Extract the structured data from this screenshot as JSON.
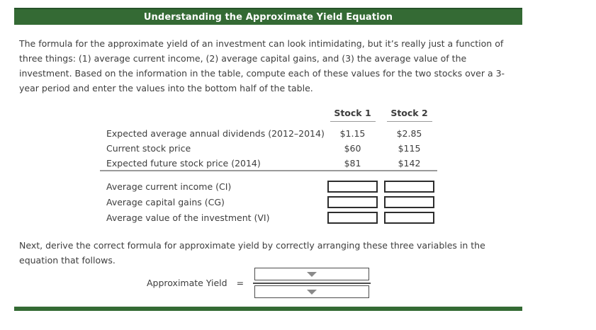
{
  "title_bar": {
    "title": "Understanding the Approximate Yield Equation"
  },
  "intro_paragraph": "The formula for the approximate yield of an investment can look intimidating, but it’s really just a function of three things: (1) average current income, (2) average capital gains, and (3) the average value of the investment. Based on the information in the table, compute each of these values for the two stocks over a 3-year period and enter the values into the bottom half of the table.",
  "table": {
    "column_headers": [
      "Stock 1",
      "Stock 2"
    ],
    "data_rows": [
      {
        "label": "Expected average annual dividends (2012–2014)",
        "stock1": "$1.15",
        "stock2": "$2.85"
      },
      {
        "label": "Current stock price",
        "stock1": "$60",
        "stock2": "$115"
      },
      {
        "label": "Expected future stock price (2014)",
        "stock1": "$81",
        "stock2": "$142"
      }
    ],
    "input_rows": [
      {
        "label": "Average current income (CI)",
        "stock1_value": "",
        "stock2_value": ""
      },
      {
        "label": "Average capital gains (CG)",
        "stock1_value": "",
        "stock2_value": ""
      },
      {
        "label": "Average value of the investment (VI)",
        "stock1_value": "",
        "stock2_value": ""
      }
    ]
  },
  "derive_paragraph": "Next, derive the correct formula for approximate yield by correctly arranging these three variables in the equation that follows.",
  "equation": {
    "label": "Approximate Yield",
    "equals_sign": "=",
    "numerator_selected_value": "",
    "denominator_selected_value": ""
  },
  "icons": {
    "dropdown_arrow": "chevron-down-icon"
  },
  "colors": {
    "accent_green": "#346a34",
    "body_text": "#3d3d3d",
    "divider_gray": "#9a9a9a"
  }
}
